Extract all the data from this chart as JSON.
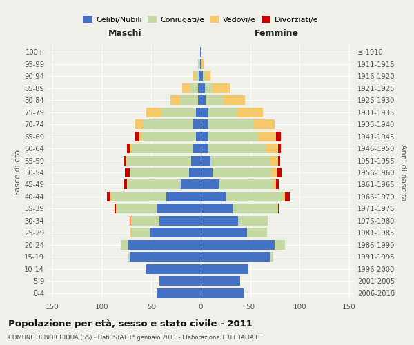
{
  "age_groups": [
    "0-4",
    "5-9",
    "10-14",
    "15-19",
    "20-24",
    "25-29",
    "30-34",
    "35-39",
    "40-44",
    "45-49",
    "50-54",
    "55-59",
    "60-64",
    "65-69",
    "70-74",
    "75-79",
    "80-84",
    "85-89",
    "90-94",
    "95-99",
    "100+"
  ],
  "birth_years": [
    "2006-2010",
    "2001-2005",
    "1996-2000",
    "1991-1995",
    "1986-1990",
    "1981-1985",
    "1976-1980",
    "1971-1975",
    "1966-1970",
    "1961-1965",
    "1956-1960",
    "1951-1955",
    "1946-1950",
    "1941-1945",
    "1936-1940",
    "1931-1935",
    "1926-1930",
    "1921-1925",
    "1916-1920",
    "1911-1915",
    "≤ 1910"
  ],
  "male_celibi": [
    45,
    42,
    55,
    72,
    73,
    52,
    42,
    45,
    35,
    20,
    12,
    10,
    8,
    5,
    8,
    5,
    3,
    3,
    2,
    1,
    1
  ],
  "male_coniugati": [
    0,
    0,
    0,
    2,
    8,
    18,
    28,
    40,
    55,
    55,
    60,
    65,
    62,
    55,
    50,
    35,
    18,
    8,
    3,
    1,
    0
  ],
  "male_vedovi": [
    0,
    0,
    0,
    0,
    0,
    1,
    1,
    1,
    2,
    0,
    0,
    1,
    2,
    3,
    8,
    15,
    10,
    8,
    3,
    1,
    0
  ],
  "male_divorziati": [
    0,
    0,
    0,
    0,
    0,
    0,
    1,
    1,
    3,
    3,
    5,
    2,
    3,
    3,
    0,
    0,
    0,
    0,
    0,
    0,
    0
  ],
  "female_celibi": [
    43,
    40,
    48,
    70,
    75,
    47,
    38,
    32,
    25,
    18,
    12,
    10,
    8,
    8,
    8,
    7,
    5,
    4,
    2,
    1,
    0
  ],
  "female_coniugati": [
    0,
    0,
    0,
    3,
    10,
    20,
    30,
    45,
    58,
    55,
    60,
    60,
    58,
    50,
    45,
    30,
    18,
    8,
    2,
    0,
    0
  ],
  "female_vedovi": [
    0,
    0,
    0,
    0,
    0,
    0,
    0,
    1,
    2,
    3,
    5,
    8,
    12,
    18,
    22,
    26,
    22,
    18,
    6,
    2,
    0
  ],
  "female_divorziati": [
    0,
    0,
    0,
    0,
    0,
    0,
    0,
    1,
    5,
    3,
    5,
    2,
    3,
    5,
    0,
    0,
    0,
    0,
    0,
    0,
    0
  ],
  "color_celibi": "#4472c4",
  "color_coniugati": "#c5d9a4",
  "color_vedovi": "#f5c96a",
  "color_divorziati": "#cc0000",
  "title": "Popolazione per età, sesso e stato civile - 2011",
  "subtitle": "COMUNE DI BERCHIDDA (SS) - Dati ISTAT 1° gennaio 2011 - Elaborazione TUTTITALIA.IT",
  "ylabel_left": "Fasce di età",
  "ylabel_right": "Anni di nascita",
  "xlabel_left": "Maschi",
  "xlabel_right": "Femmine",
  "xlim": 155,
  "background_color": "#f0f0eb"
}
